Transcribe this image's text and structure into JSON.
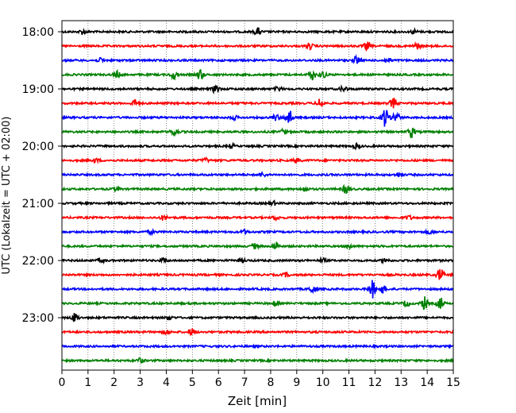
{
  "chart_data": {
    "type": "line",
    "title": "",
    "xlabel": "Zeit  [min]",
    "ylabel": "UTC (Lokalzeit = UTC + 02:00)",
    "xlim": [
      0,
      15
    ],
    "x_ticks": [
      "0",
      "1",
      "2",
      "3",
      "4",
      "5",
      "6",
      "7",
      "8",
      "9",
      "10",
      "11",
      "12",
      "13",
      "14",
      "15"
    ],
    "y_tick_labels": [
      "18:00",
      "19:00",
      "20:00",
      "21:00",
      "22:00",
      "23:00"
    ],
    "grid": "vertical dotted lines at each minute",
    "trace_interval_min": 15,
    "colors": [
      "#000000",
      "#ff0000",
      "#0000ff",
      "#008000"
    ],
    "series": [
      {
        "start": "18:00",
        "color": "#000000",
        "events": [
          [
            0.8,
            0.5
          ],
          [
            7.5,
            0.7
          ],
          [
            13.5,
            0.4
          ]
        ]
      },
      {
        "start": "18:15",
        "color": "#ff0000",
        "events": [
          [
            9.5,
            0.6
          ],
          [
            11.7,
            0.8
          ],
          [
            13.6,
            0.6
          ]
        ]
      },
      {
        "start": "18:30",
        "color": "#0000ff",
        "events": [
          [
            1.5,
            0.4
          ],
          [
            11.3,
            0.8
          ],
          [
            12.5,
            0.5
          ]
        ]
      },
      {
        "start": "18:45",
        "color": "#008000",
        "events": [
          [
            2.1,
            0.7
          ],
          [
            4.3,
            0.9
          ],
          [
            5.3,
            1.1
          ],
          [
            9.6,
            1.0
          ],
          [
            10.0,
            0.7
          ]
        ]
      },
      {
        "start": "19:00",
        "color": "#000000",
        "events": [
          [
            5.9,
            0.9
          ],
          [
            8.3,
            0.5
          ],
          [
            10.8,
            0.6
          ]
        ]
      },
      {
        "start": "19:15",
        "color": "#ff0000",
        "events": [
          [
            2.8,
            0.7
          ],
          [
            9.9,
            1.0
          ],
          [
            12.7,
            1.1
          ]
        ]
      },
      {
        "start": "19:30",
        "color": "#0000ff",
        "events": [
          [
            6.6,
            0.4
          ],
          [
            8.2,
            0.6
          ],
          [
            8.7,
            1.8
          ],
          [
            12.4,
            2.0
          ],
          [
            12.8,
            1.3
          ]
        ]
      },
      {
        "start": "19:45",
        "color": "#008000",
        "events": [
          [
            4.3,
            0.8
          ],
          [
            8.5,
            0.5
          ],
          [
            13.4,
            1.2
          ]
        ]
      },
      {
        "start": "20:00",
        "color": "#000000",
        "events": [
          [
            6.5,
            0.4
          ],
          [
            11.3,
            0.5
          ]
        ]
      },
      {
        "start": "20:15",
        "color": "#ff0000",
        "events": [
          [
            1.3,
            0.4
          ],
          [
            5.5,
            0.4
          ],
          [
            9.0,
            0.4
          ]
        ]
      },
      {
        "start": "20:30",
        "color": "#0000ff",
        "events": [
          [
            7.7,
            0.4
          ],
          [
            12.9,
            0.4
          ]
        ]
      },
      {
        "start": "20:45",
        "color": "#008000",
        "events": [
          [
            2.1,
            0.4
          ],
          [
            9.3,
            0.5
          ],
          [
            10.9,
            1.0
          ]
        ]
      },
      {
        "start": "21:00",
        "color": "#000000",
        "events": [
          [
            8.1,
            0.4
          ]
        ]
      },
      {
        "start": "21:15",
        "color": "#ff0000",
        "events": [
          [
            3.9,
            0.5
          ],
          [
            8.2,
            0.4
          ],
          [
            13.3,
            0.4
          ]
        ]
      },
      {
        "start": "21:30",
        "color": "#0000ff",
        "events": [
          [
            3.4,
            0.4
          ],
          [
            7.0,
            0.4
          ],
          [
            14.1,
            0.4
          ]
        ]
      },
      {
        "start": "21:45",
        "color": "#008000",
        "events": [
          [
            7.4,
            0.5
          ],
          [
            8.2,
            0.9
          ],
          [
            11.0,
            0.5
          ]
        ]
      },
      {
        "start": "22:00",
        "color": "#000000",
        "events": [
          [
            1.5,
            0.4
          ],
          [
            3.9,
            0.4
          ],
          [
            6.9,
            0.4
          ],
          [
            10.0,
            0.4
          ],
          [
            12.4,
            0.4
          ]
        ]
      },
      {
        "start": "22:15",
        "color": "#ff0000",
        "events": [
          [
            8.6,
            0.4
          ],
          [
            14.5,
            1.4
          ]
        ]
      },
      {
        "start": "22:30",
        "color": "#0000ff",
        "events": [
          [
            9.6,
            0.8
          ],
          [
            11.9,
            1.8
          ],
          [
            12.3,
            0.8
          ]
        ]
      },
      {
        "start": "22:45",
        "color": "#008000",
        "events": [
          [
            8.2,
            0.5
          ],
          [
            13.2,
            0.6
          ],
          [
            13.9,
            1.3
          ],
          [
            14.5,
            1.3
          ]
        ]
      },
      {
        "start": "23:00",
        "color": "#000000",
        "events": [
          [
            0.5,
            0.9
          ],
          [
            4.1,
            0.4
          ]
        ]
      },
      {
        "start": "23:15",
        "color": "#ff0000",
        "events": [
          [
            4.0,
            0.5
          ],
          [
            5.0,
            0.7
          ]
        ]
      },
      {
        "start": "23:30",
        "color": "#0000ff",
        "events": []
      },
      {
        "start": "23:45",
        "color": "#008000",
        "events": [
          [
            3.0,
            0.5
          ]
        ]
      }
    ]
  }
}
